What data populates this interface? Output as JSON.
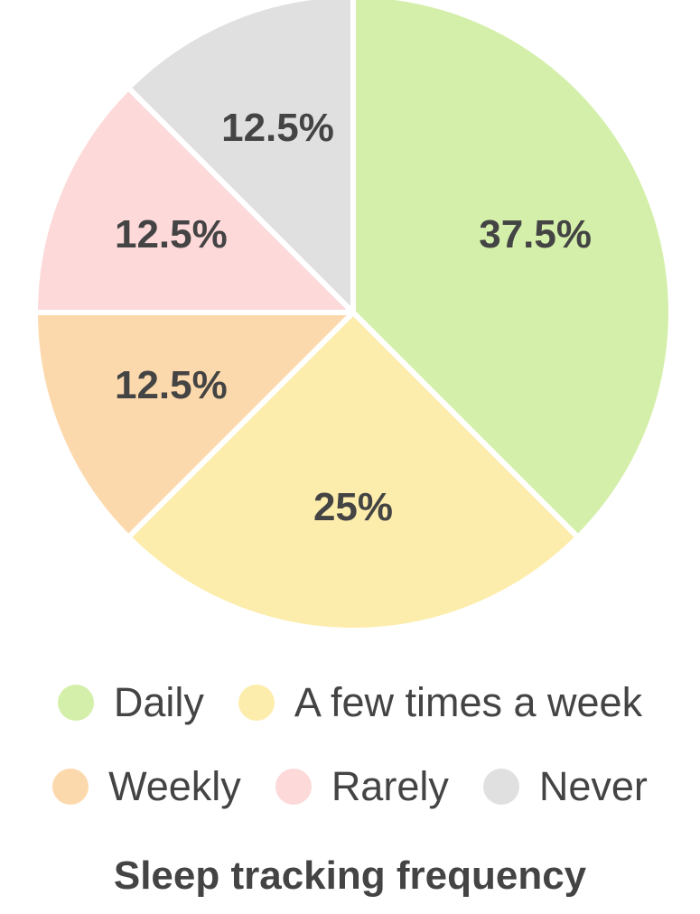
{
  "chart_data": {
    "type": "pie",
    "title": "Sleep tracking frequency",
    "categories": [
      "Daily",
      "A few times a week",
      "Weekly",
      "Rarely",
      "Never"
    ],
    "values": [
      37.5,
      25,
      12.5,
      12.5,
      12.5
    ],
    "value_labels": [
      "37.5%",
      "25%",
      "12.5%",
      "12.5%",
      "12.5%"
    ],
    "colors": [
      "#d4efaa",
      "#fdedac",
      "#fcd9ac",
      "#fdd9d9",
      "#e0e0e0"
    ],
    "start_angle_deg": 0,
    "direction": "clockwise",
    "legend_position": "bottom"
  }
}
